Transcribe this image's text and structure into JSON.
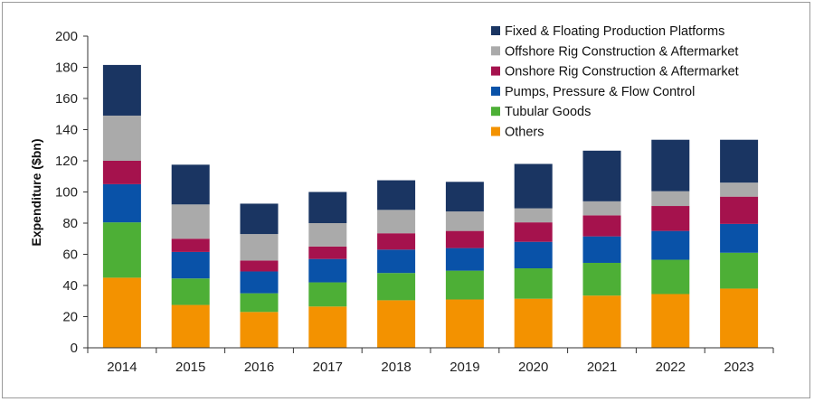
{
  "chart_data": {
    "type": "bar",
    "stacked": true,
    "title": "",
    "xlabel": "",
    "ylabel": "Expenditure ($bn)",
    "ylim": [
      0,
      200
    ],
    "yticks": [
      0,
      20,
      40,
      60,
      80,
      100,
      120,
      140,
      160,
      180,
      200
    ],
    "grid": false,
    "legend_position": "top-right",
    "categories": [
      "2014",
      "2015",
      "2016",
      "2017",
      "2018",
      "2019",
      "2020",
      "2021",
      "2022",
      "2023"
    ],
    "series": [
      {
        "name": "Others",
        "color": "#F39200",
        "values": [
          45,
          27.5,
          23,
          26.5,
          30.5,
          31,
          31.5,
          33.5,
          34.5,
          38
        ]
      },
      {
        "name": "Tubular Goods",
        "color": "#4DAF36",
        "values": [
          35.5,
          17,
          12,
          15.5,
          17.5,
          18.5,
          19.5,
          21,
          22,
          23
        ]
      },
      {
        "name": "Pumps, Pressure & Flow Control",
        "color": "#0952A8",
        "values": [
          24.5,
          17,
          14,
          15,
          15,
          14.5,
          17,
          17,
          18.5,
          18.5
        ]
      },
      {
        "name": "Onshore Rig Construction & Aftermarket",
        "color": "#A5124D",
        "values": [
          15,
          8.5,
          7,
          8,
          10.5,
          11,
          12.5,
          13.5,
          16,
          17.5
        ]
      },
      {
        "name": "Offshore Rig Construction & Aftermarket",
        "color": "#AAAAAA",
        "values": [
          29,
          22,
          17,
          15,
          15,
          12.5,
          9,
          9,
          9.5,
          9
        ]
      },
      {
        "name": "Fixed & Floating Production Platforms",
        "color": "#1A3562",
        "values": [
          32.5,
          25.5,
          19.5,
          20,
          19,
          19,
          28.5,
          32.5,
          33,
          27.5
        ]
      }
    ]
  }
}
